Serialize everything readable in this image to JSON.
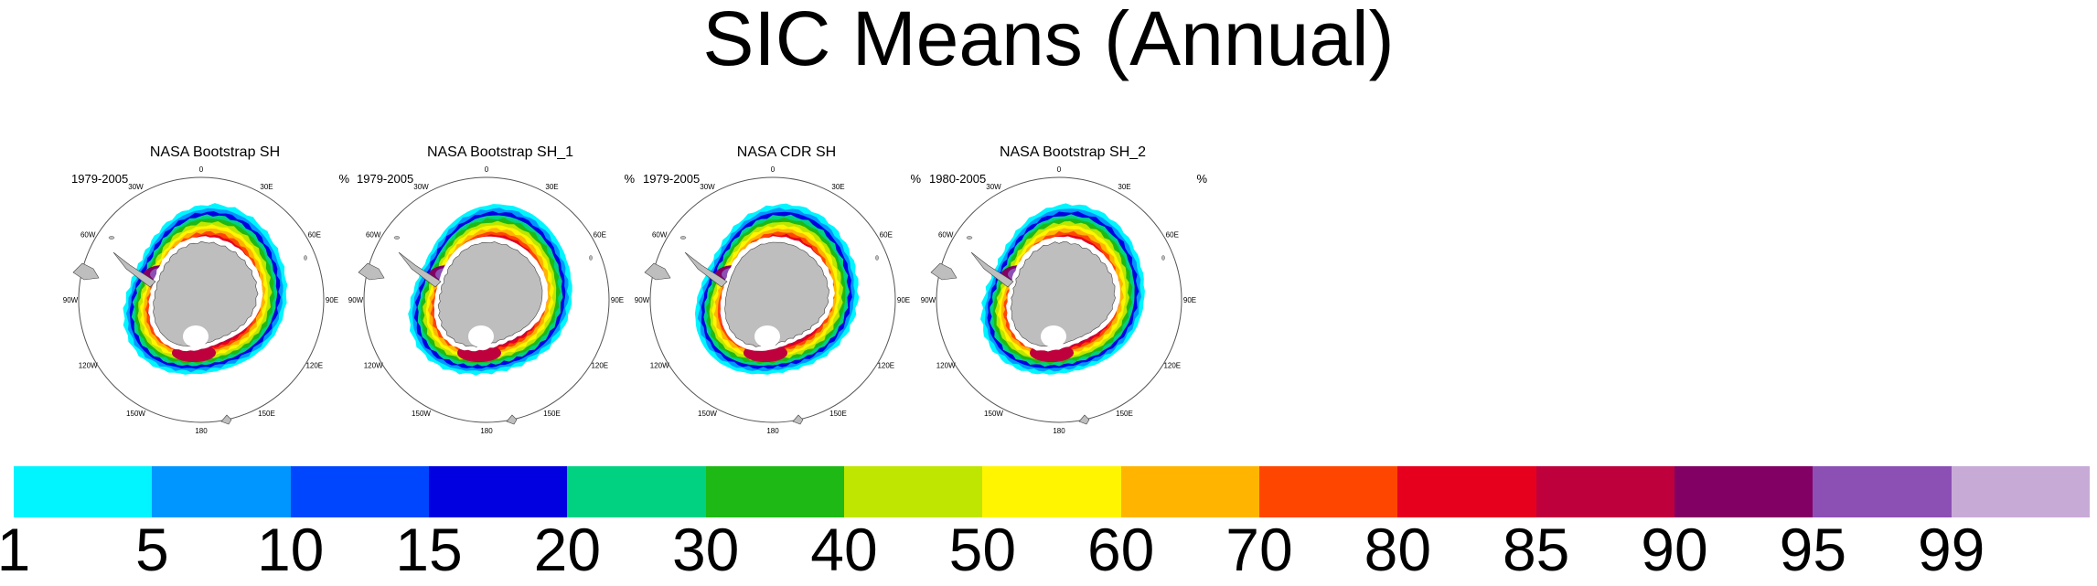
{
  "title": "SIC Means (Annual)",
  "panels": [
    {
      "name": "NASA Bootstrap SH",
      "years": "1979-2005",
      "unit": "%"
    },
    {
      "name": "NASA Bootstrap SH_1",
      "years": "1979-2005",
      "unit": "%"
    },
    {
      "name": "NASA CDR SH",
      "years": "1979-2005",
      "unit": "%"
    },
    {
      "name": "NASA Bootstrap SH_2",
      "years": "1980-2005",
      "unit": "%"
    }
  ],
  "longitude_labels": [
    "0",
    "30E",
    "60E",
    "90E",
    "120E",
    "150E",
    "180",
    "150W",
    "120W",
    "90W",
    "60W",
    "30W"
  ],
  "colorbar": {
    "colors": [
      "#00f5ff",
      "#0096ff",
      "#0046ff",
      "#0000e1",
      "#00d282",
      "#1eb914",
      "#bee600",
      "#fff500",
      "#ffb400",
      "#ff4600",
      "#e6001e",
      "#be003c",
      "#820064",
      "#8c50b4",
      "#c8aad7"
    ],
    "tick_labels": [
      "1",
      "5",
      "10",
      "15",
      "20",
      "30",
      "40",
      "50",
      "60",
      "70",
      "80",
      "85",
      "90",
      "95",
      "99"
    ]
  },
  "colors": {
    "land": "#bebebe",
    "outline": "#444444"
  }
}
